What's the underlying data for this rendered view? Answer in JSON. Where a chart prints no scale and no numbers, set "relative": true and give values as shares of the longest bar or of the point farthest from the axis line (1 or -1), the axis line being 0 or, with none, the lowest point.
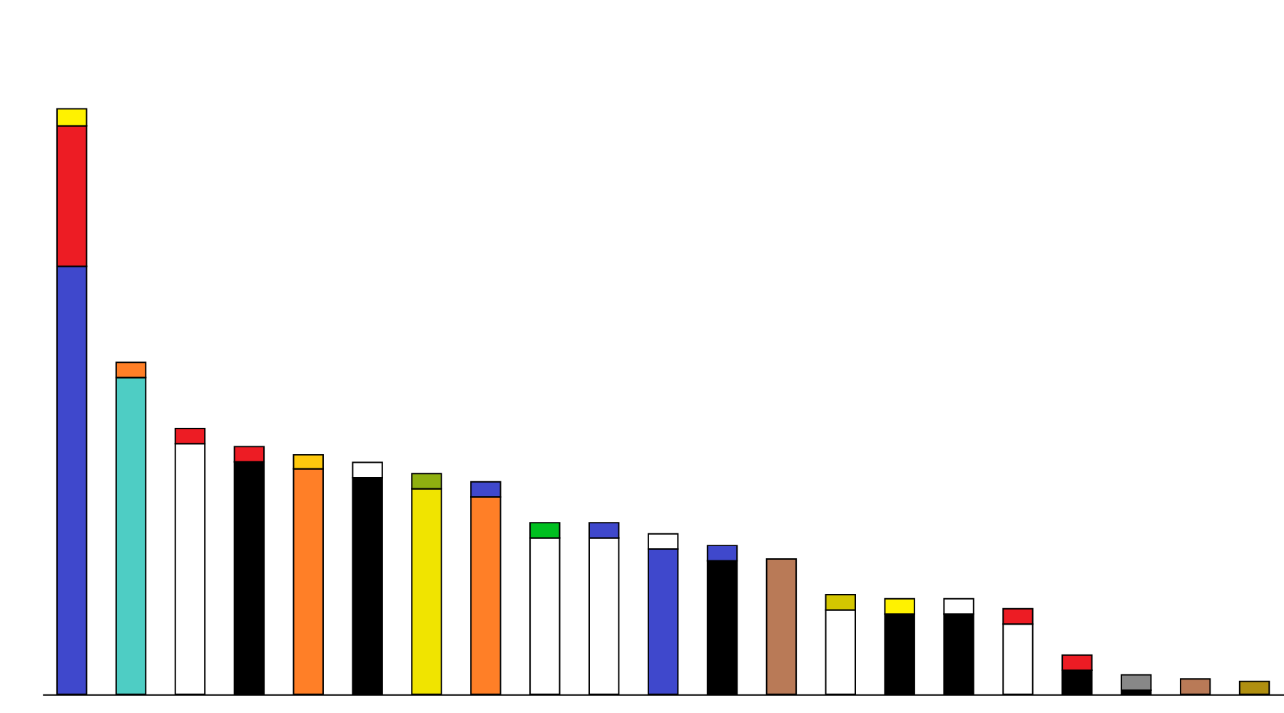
{
  "chart_data": {
    "type": "bar",
    "relative": true,
    "stacked": true,
    "grid": false,
    "categories": [
      null,
      null,
      null,
      null,
      null,
      null,
      null,
      null,
      null,
      null,
      null,
      null,
      null,
      null,
      null,
      null,
      null,
      null,
      null,
      null,
      null
    ],
    "series": [
      {
        "colors": [
          "#3f48cc",
          "#4ecdc4",
          "#ffffff",
          "#000000",
          "#ff7f27",
          "#000000",
          "#f0e400",
          "#ff7f27",
          "#ffffff",
          "#ffffff",
          "#3f48cc",
          "#000000",
          "#b97a57",
          "#ffffff",
          "#000000",
          "#000000",
          "#ffffff",
          "#000000",
          "#000000",
          "#b97a57",
          "#b08f10"
        ],
        "values": [
          0.731,
          0.541,
          0.428,
          0.397,
          0.385,
          0.37,
          0.351,
          0.337,
          0.267,
          0.267,
          0.248,
          0.228,
          0.231,
          0.144,
          0.137,
          0.137,
          0.12,
          0.041,
          0.007,
          0.026,
          0.022
        ]
      },
      {
        "colors": [
          "#ed1c24",
          "#ff7f27",
          "#ed1c24",
          "#ed1c24",
          "#ffc90e",
          "#ffffff",
          "#8fb010",
          "#3f48cc",
          "#00c020",
          "#3f48cc",
          "#ffffff",
          "#3f48cc",
          null,
          "#d4c600",
          "#fff200",
          "#ffffff",
          "#ed1c24",
          "#ed1c24",
          "#888888",
          null,
          null
        ],
        "values": [
          0.24,
          0.026,
          0.026,
          0.026,
          0.024,
          0.026,
          0.026,
          0.026,
          0.026,
          0.026,
          0.026,
          0.026,
          null,
          0.026,
          0.026,
          0.026,
          0.026,
          0.026,
          0.026,
          null,
          null
        ]
      },
      {
        "colors": [
          "#fff200",
          null,
          null,
          null,
          null,
          null,
          null,
          null,
          null,
          null,
          null,
          null,
          null,
          null,
          null,
          null,
          null,
          null,
          null,
          null,
          null
        ],
        "values": [
          0.029,
          null,
          null,
          null,
          null,
          null,
          null,
          null,
          null,
          null,
          null,
          null,
          null,
          null,
          null,
          null,
          null,
          null,
          null,
          null,
          null
        ]
      }
    ]
  }
}
